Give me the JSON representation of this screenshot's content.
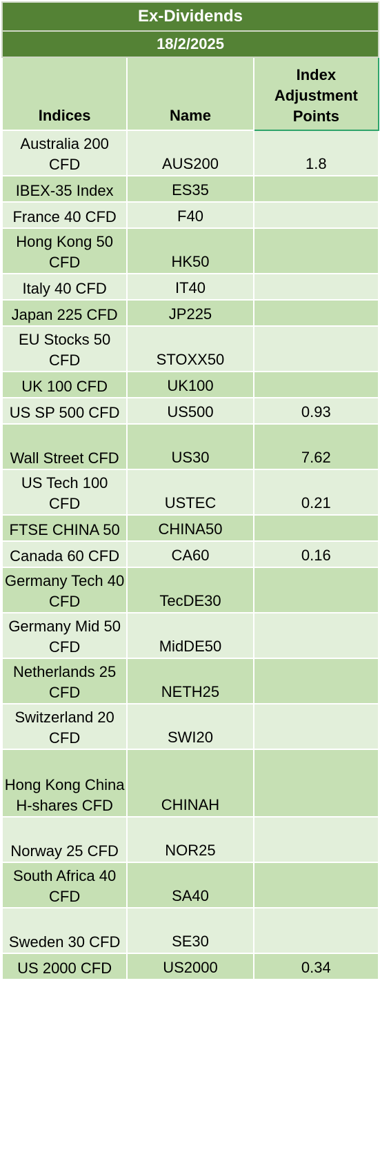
{
  "title": "Ex-Dividends",
  "date": "18/2/2025",
  "columns": {
    "indices": "Indices",
    "name": "Name",
    "adjustment": "Index Adjustment Points"
  },
  "rows": [
    {
      "index": "Australia 200 CFD",
      "name": "AUS200",
      "points": "1.8"
    },
    {
      "index": "IBEX-35 Index",
      "name": "ES35",
      "points": ""
    },
    {
      "index": "France 40 CFD",
      "name": "F40",
      "points": ""
    },
    {
      "index": "Hong Kong 50 CFD",
      "name": "HK50",
      "points": ""
    },
    {
      "index": "Italy 40 CFD",
      "name": "IT40",
      "points": ""
    },
    {
      "index": "Japan 225 CFD",
      "name": "JP225",
      "points": ""
    },
    {
      "index": "EU Stocks 50 CFD",
      "name": "STOXX50",
      "points": ""
    },
    {
      "index": "UK 100 CFD",
      "name": "UK100",
      "points": ""
    },
    {
      "index": "US SP 500 CFD",
      "name": "US500",
      "points": "0.93"
    },
    {
      "index": "Wall Street CFD",
      "name": "US30",
      "points": "7.62"
    },
    {
      "index": "US Tech 100 CFD",
      "name": "USTEC",
      "points": "0.21"
    },
    {
      "index": "FTSE CHINA 50",
      "name": "CHINA50",
      "points": ""
    },
    {
      "index": "Canada 60 CFD",
      "name": "CA60",
      "points": "0.16"
    },
    {
      "index": "Germany Tech 40 CFD",
      "name": "TecDE30",
      "points": ""
    },
    {
      "index": "Germany Mid 50 CFD",
      "name": "MidDE50",
      "points": ""
    },
    {
      "index": "Netherlands 25 CFD",
      "name": "NETH25",
      "points": ""
    },
    {
      "index": "Switzerland 20 CFD",
      "name": "SWI20",
      "points": ""
    },
    {
      "index": "Hong Kong China H-shares CFD",
      "name": "CHINAH",
      "points": ""
    },
    {
      "index": "Norway 25 CFD",
      "name": "NOR25",
      "points": ""
    },
    {
      "index": "South Africa 40 CFD",
      "name": "SA40",
      "points": ""
    },
    {
      "index": "Sweden 30 CFD",
      "name": "SE30",
      "points": ""
    },
    {
      "index": "US 2000 CFD",
      "name": "US2000",
      "points": "0.34"
    }
  ],
  "colors": {
    "header_green": "#548235",
    "row_light": "#e2efda",
    "row_dark": "#c6e0b4"
  }
}
